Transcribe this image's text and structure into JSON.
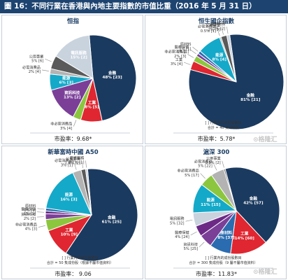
{
  "header": {
    "title": "圖 16：不同行業在香港與內地主要指數的市值比重（2016 年 5 月 31 日）"
  },
  "watermark": {
    "text": "⊙格隆汇"
  },
  "charts": [
    {
      "title": "恒指",
      "note": "",
      "note2": "",
      "pe": "市盈率：9.68*",
      "chart_data": {
        "type": "pie",
        "slices": [
          {
            "name": "金融",
            "label": "金融\n48% [23]",
            "value": 48,
            "color": "#1b3a5f"
          },
          {
            "name": "工業",
            "label": "工業\n8% [5]",
            "value": 8,
            "color": "#e02630"
          },
          {
            "name": "非必需消費品",
            "label": "非必需消費品\n3% [4]",
            "value": 3,
            "color": "#8cc63e"
          },
          {
            "name": "資訊科技",
            "label": "資訊科技\n13% [2]",
            "value": 13,
            "color": "#7b3f98"
          },
          {
            "name": "能源",
            "label": "能源\n6% [3]",
            "value": 6,
            "color": "#14a9c9"
          },
          {
            "name": "必需消費品",
            "label": "必需消費品\n2% [4]",
            "value": 2,
            "color": "#b3b3b3"
          },
          {
            "name": "公用事業",
            "label": "公用事業\n5% [6]",
            "value": 5,
            "color": "#5a5a5a"
          },
          {
            "name": "電訊服務",
            "label": "電訊服務\n15% [2]",
            "value": 15,
            "color": "#c9d3de"
          }
        ]
      }
    },
    {
      "title": "恒生國企指數",
      "note": "[ ] 行業內的成份股數目",
      "note2": "合計 = 40 隻成份股",
      "pe": "市盈率：5.78*",
      "chart_data": {
        "type": "pie",
        "slices": [
          {
            "name": "金融",
            "label": "金融\n81% [21]",
            "value": 81,
            "color": "#1b3a5f"
          },
          {
            "name": "工業",
            "label": "工業\n3% [4]",
            "value": 3,
            "color": "#e02630"
          },
          {
            "name": "非必需消費品",
            "label": "非必需消費品\n2% [3]",
            "value": 2,
            "color": "#8cc63e"
          },
          {
            "name": "醫療保健",
            "label": "醫療保健\n1% [1]",
            "value": 1,
            "color": "#7b3f98"
          },
          {
            "name": "原材料",
            "label": "原材料\n1% [1]",
            "value": 1,
            "color": "#2b6cb0"
          },
          {
            "name": "能源",
            "label": "能源\n8% [4]",
            "value": 8,
            "color": "#14a9c9"
          },
          {
            "name": "必需消費品",
            "label": "必需消費品\n0.5% [1]",
            "value": 0.5,
            "color": "#b3b3b3"
          },
          {
            "name": "公用事業",
            "label": "公用事業\n2% [3]",
            "value": 2,
            "color": "#5a5a5a"
          },
          {
            "name": "電訊服務",
            "label": "電訊服務\n1% [2]",
            "value": 1,
            "color": "#c9d3de"
          }
        ]
      }
    },
    {
      "title": "新華富時中國 A50",
      "note": "[ ] 行業內的成份股數目",
      "note2": "合計 = 50 隻成份股（根據不屬市值資料）",
      "pe": "市盈率： 9.06",
      "chart_data": {
        "type": "pie",
        "slices": [
          {
            "name": "金融",
            "label": "金融\n61% [25]",
            "value": 61,
            "color": "#1b3a5f"
          },
          {
            "name": "工業",
            "label": "工業\n10% [9]",
            "value": 10,
            "color": "#e02630"
          },
          {
            "name": "非必需消費品",
            "label": "非必需消費品\n4% [3]",
            "value": 4,
            "color": "#8cc63e"
          },
          {
            "name": "資訊科技",
            "label": "資訊科技\n2% [2]",
            "value": 2,
            "color": "#7b3f98"
          },
          {
            "name": "醫療保健",
            "label": "醫療保健\n1% [1]",
            "value": 1,
            "color": "#6c2a86"
          },
          {
            "name": "原材料",
            "label": "原材料\n1% [1]",
            "value": 1,
            "color": "#2b6cb0"
          },
          {
            "name": "能源",
            "label": "能源\n16% [3]",
            "value": 16,
            "color": "#14a9c9"
          },
          {
            "name": "必需消費品",
            "label": "必需消費品\n3% [1]",
            "value": 3,
            "color": "#b3b3b3"
          },
          {
            "name": "公用事業",
            "label": "公用事業\n1.6% [2]",
            "value": 1.6,
            "color": "#5a5a5a"
          },
          {
            "name": "電訊服務",
            "label": "電訊服務\n0.7% [1]",
            "value": 0.7,
            "color": "#c9d3de"
          }
        ]
      }
    },
    {
      "title": "滬深 300",
      "note": "[ ] 行業內的成份股數目",
      "note2": "合計 = 300 隻成份股（9 屬不屬市值資料）",
      "pe": "市盈率：11.83*",
      "chart_data": {
        "type": "pie",
        "slices": [
          {
            "name": "金融",
            "label": "金融\n42% [57]",
            "value": 42,
            "color": "#1b3a5f"
          },
          {
            "name": "工業",
            "label": "工業\n14% [60]",
            "value": 14,
            "color": "#e02630"
          },
          {
            "name": "原材料",
            "label": "原材料\n8% [37]",
            "value": 8,
            "color": "#2b6cb0"
          },
          {
            "name": "資訊科技",
            "label": "資訊科技\n5% [25]",
            "value": 5,
            "color": "#7b3f98"
          },
          {
            "name": "醫療保健",
            "label": "醫療保健\n4% [24]",
            "value": 4,
            "color": "#6c2a86"
          },
          {
            "name": "電訊服務",
            "label": "電訊服務\n5% [32]",
            "value": 5,
            "color": "#c9d3de"
          },
          {
            "name": "能源",
            "label": "能源\n11% [15]",
            "value": 11,
            "color": "#14a9c9"
          },
          {
            "name": "非必需消費品",
            "label": "非必需消費品\n5% [17]",
            "value": 5,
            "color": "#8cc63e"
          },
          {
            "name": "必需消費品",
            "label": "必需消費品\n5% [22]",
            "value": 5,
            "color": "#b3b3b3"
          },
          {
            "name": "公用事業",
            "label": "公用事業\n0.5% [2]",
            "value": 0.5,
            "color": "#5a5a5a"
          }
        ]
      }
    }
  ]
}
